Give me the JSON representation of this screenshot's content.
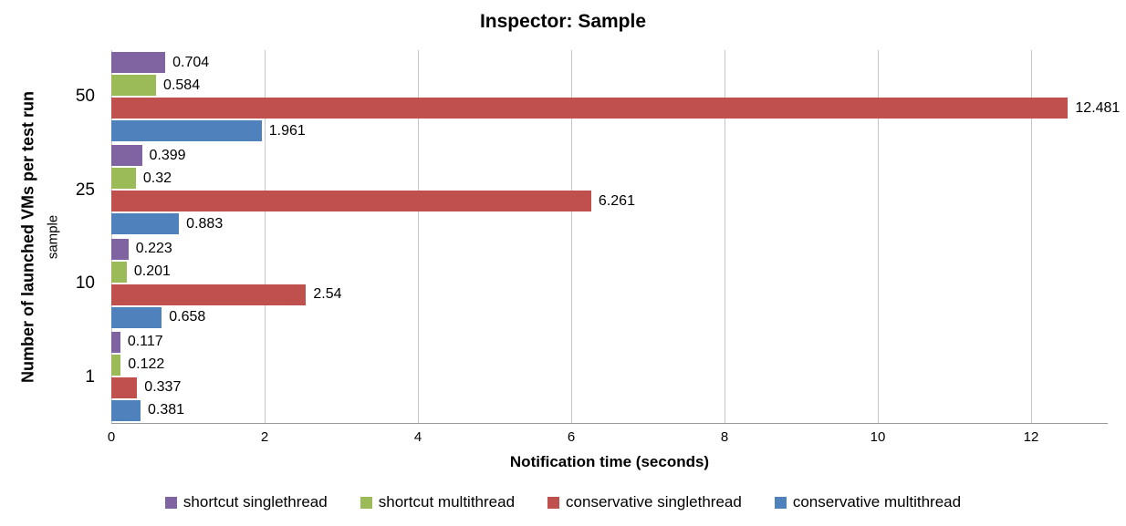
{
  "chart_data": {
    "type": "bar",
    "orientation": "horizontal",
    "title": "Inspector: Sample",
    "xlabel": "Notification time (seconds)",
    "ylabel": "Number of launched VMs per test run",
    "ylabel_secondary": "sample",
    "categories": [
      "50",
      "25",
      "10",
      "1"
    ],
    "series": [
      {
        "name": "shortcut singlethread",
        "color": "#8064A2",
        "values": [
          0.704,
          0.399,
          0.223,
          0.117
        ]
      },
      {
        "name": "shortcut multithread",
        "color": "#9BBB59",
        "values": [
          0.584,
          0.32,
          0.201,
          0.122
        ]
      },
      {
        "name": "conservative singlethread",
        "color": "#C0504D",
        "values": [
          12.481,
          6.261,
          2.54,
          0.337
        ]
      },
      {
        "name": "conservative multithread",
        "color": "#4F81BD",
        "values": [
          1.961,
          0.883,
          0.658,
          0.381
        ]
      }
    ],
    "xlim": [
      0,
      13
    ],
    "xticks": [
      0,
      2,
      4,
      6,
      8,
      10,
      12
    ],
    "grid": true,
    "data_labels": true,
    "legend_position": "bottom",
    "gridline_color": "#C6C6C6",
    "axis_line_color": "#9A9A9A",
    "background_color": "#FFFFFF"
  }
}
